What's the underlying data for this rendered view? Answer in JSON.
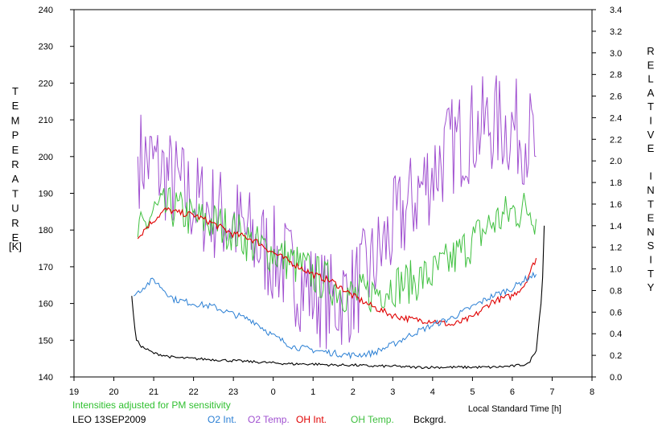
{
  "chart_data": {
    "type": "line",
    "xlabel": "Local Standard Time [h]",
    "ylabel_left": "TEMPERATURE",
    "ylabel_left_unit": "[K]",
    "ylabel_right": "RELATIVE INTENSITY",
    "x_ticks": [
      "19",
      "20",
      "21",
      "22",
      "23",
      "0",
      "1",
      "2",
      "3",
      "4",
      "5",
      "6",
      "7",
      "8"
    ],
    "xlim": [
      19,
      32
    ],
    "ylim_left": [
      140,
      240
    ],
    "ylim_right": [
      0,
      3.4
    ],
    "y_ticks_left": [
      "140",
      "150",
      "160",
      "170",
      "180",
      "190",
      "200",
      "210",
      "220",
      "230",
      "240"
    ],
    "y_ticks_right": [
      "0.0",
      "0.2",
      "0.4",
      "0.6",
      "0.8",
      "1.0",
      "1.2",
      "1.4",
      "1.6",
      "1.8",
      "2.0",
      "2.2",
      "2.4",
      "2.6",
      "2.8",
      "3.0",
      "3.2",
      "3.4"
    ],
    "note": "Intensities adjusted for PM sensitivity",
    "station": "LEO 13SEP2009",
    "legend": [
      "O2 Int.",
      "O2 Temp.",
      "OH Int.",
      "OH Temp.",
      "Bckgrd."
    ],
    "colors": {
      "o2_int": "#2a7fd4",
      "o2_temp": "#a050d0",
      "oh_int": "#e00000",
      "oh_temp": "#40c040",
      "bckgrd": "#000000",
      "note": "#30c030"
    },
    "series": [
      {
        "name": "O2 Temp.",
        "axis": "left",
        "x": [
          20.6,
          21,
          21.5,
          22,
          22.5,
          23,
          23.5,
          24,
          24.5,
          25,
          25.5,
          26,
          26.5,
          27,
          27.5,
          28,
          28.5,
          29,
          29.5,
          30,
          30.5,
          30.6
        ],
        "values": [
          200,
          198,
          193,
          188,
          185,
          182,
          177,
          173,
          168,
          163,
          160,
          163,
          170,
          180,
          188,
          196,
          203,
          207,
          209,
          208,
          205,
          200
        ]
      },
      {
        "name": "OH Temp.",
        "axis": "left",
        "x": [
          20.6,
          21,
          21.5,
          22,
          22.5,
          23,
          23.5,
          24,
          24.5,
          25,
          25.5,
          26,
          26.5,
          27,
          27.5,
          28,
          28.5,
          29,
          29.5,
          30,
          30.5,
          30.6
        ],
        "values": [
          178,
          185,
          186,
          183,
          182,
          180,
          176,
          174,
          171,
          168,
          165,
          162,
          163,
          165,
          166,
          168,
          172,
          177,
          182,
          185,
          186,
          183
        ]
      },
      {
        "name": "OH Int.",
        "axis": "right",
        "x": [
          20.6,
          20.8,
          21,
          21.3,
          21.6,
          22,
          22.5,
          23,
          23.3,
          23.6,
          24,
          24.5,
          25,
          25.5,
          26,
          26.5,
          27,
          27.5,
          28,
          28.5,
          29,
          29.5,
          30,
          30.3,
          30.6
        ],
        "values": [
          1.28,
          1.38,
          1.45,
          1.55,
          1.52,
          1.5,
          1.42,
          1.32,
          1.3,
          1.25,
          1.15,
          1.05,
          0.95,
          0.88,
          0.75,
          0.65,
          0.57,
          0.53,
          0.52,
          0.48,
          0.55,
          0.7,
          0.75,
          0.85,
          1.1
        ]
      },
      {
        "name": "O2 Int.",
        "axis": "right",
        "x": [
          20.5,
          20.8,
          21,
          21.5,
          22,
          22.5,
          23,
          23.5,
          24,
          24.5,
          25,
          25.5,
          26,
          26.5,
          27,
          27.5,
          28,
          28.5,
          29,
          29.5,
          30,
          30.3,
          30.6
        ],
        "values": [
          0.75,
          0.85,
          0.9,
          0.72,
          0.68,
          0.65,
          0.58,
          0.52,
          0.38,
          0.28,
          0.25,
          0.22,
          0.2,
          0.22,
          0.3,
          0.4,
          0.48,
          0.55,
          0.65,
          0.75,
          0.82,
          0.9,
          0.95
        ]
      },
      {
        "name": "Bckgrd.",
        "axis": "right",
        "x": [
          20.45,
          20.55,
          20.7,
          21,
          21.5,
          22,
          22.5,
          23,
          23.5,
          24,
          24.5,
          25,
          25.5,
          26,
          26.5,
          27,
          27.5,
          28,
          28.5,
          29,
          29.5,
          30,
          30.4,
          30.6,
          30.75,
          30.8
        ],
        "values": [
          0.75,
          0.35,
          0.28,
          0.22,
          0.18,
          0.17,
          0.16,
          0.15,
          0.14,
          0.13,
          0.12,
          0.12,
          0.11,
          0.11,
          0.1,
          0.1,
          0.09,
          0.09,
          0.09,
          0.09,
          0.09,
          0.1,
          0.12,
          0.25,
          0.8,
          1.4
        ]
      }
    ]
  }
}
